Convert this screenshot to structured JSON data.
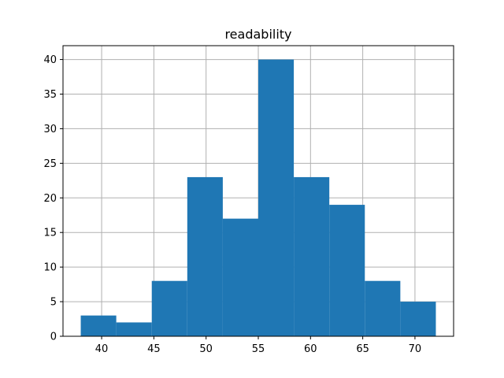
{
  "chart_data": {
    "type": "bar",
    "title": "readability",
    "xlabel": "",
    "ylabel": "",
    "bins": [
      {
        "start": 38.0,
        "end": 41.4,
        "count": 3
      },
      {
        "start": 41.4,
        "end": 44.8,
        "count": 2
      },
      {
        "start": 44.8,
        "end": 48.2,
        "count": 8
      },
      {
        "start": 48.2,
        "end": 51.6,
        "count": 23
      },
      {
        "start": 51.6,
        "end": 55.0,
        "count": 17
      },
      {
        "start": 55.0,
        "end": 58.4,
        "count": 40
      },
      {
        "start": 58.4,
        "end": 61.8,
        "count": 23
      },
      {
        "start": 61.8,
        "end": 65.2,
        "count": 19
      },
      {
        "start": 65.2,
        "end": 68.6,
        "count": 8
      },
      {
        "start": 68.6,
        "end": 72.0,
        "count": 5
      }
    ],
    "xlim": [
      36.3,
      73.7
    ],
    "ylim": [
      0,
      42
    ],
    "xticks": [
      40,
      45,
      50,
      55,
      60,
      65,
      70
    ],
    "yticks": [
      0,
      5,
      10,
      15,
      20,
      25,
      30,
      35,
      40
    ],
    "grid": true,
    "bar_color": "#1f77b4"
  }
}
